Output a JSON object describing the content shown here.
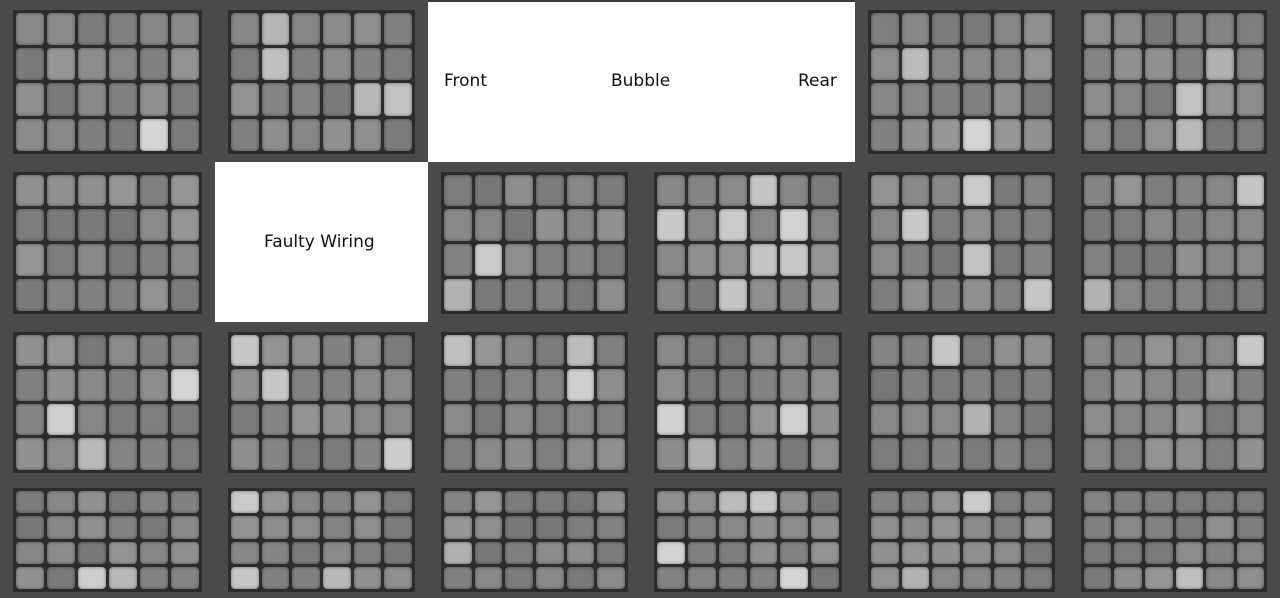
{
  "labels": {
    "front": "Front",
    "bubble": "Bubble",
    "rear": "Rear",
    "faulty_wiring": "Faulty Wiring"
  }
}
